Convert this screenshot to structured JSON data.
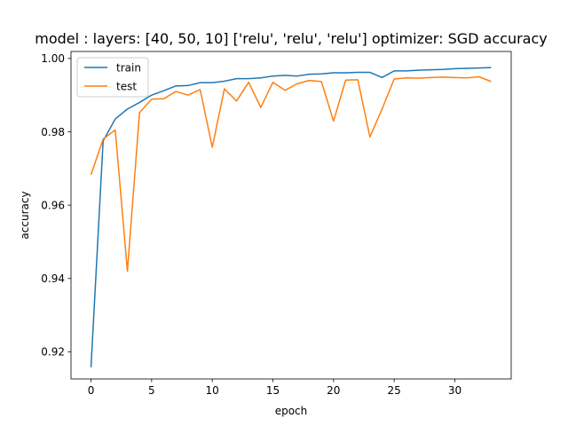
{
  "chart_data": {
    "type": "line",
    "title": "model : layers: [40, 50, 10] ['relu', 'relu', 'relu'] optimizer: SGD accuracy",
    "xlabel": "epoch",
    "ylabel": "accuracy",
    "xlim": [
      -1.65,
      34.65
    ],
    "ylim": [
      0.9126,
      1.0019
    ],
    "xticks": [
      0,
      5,
      10,
      15,
      20,
      25,
      30
    ],
    "yticks": [
      0.92,
      0.94,
      0.96,
      0.98,
      1.0
    ],
    "ytick_labels": [
      "0.92",
      "0.94",
      "0.96",
      "0.98",
      "1.00"
    ],
    "grid": false,
    "legend_position": "upper left",
    "x": [
      0,
      1,
      2,
      3,
      4,
      5,
      6,
      7,
      8,
      9,
      10,
      11,
      12,
      13,
      14,
      15,
      16,
      17,
      18,
      19,
      20,
      21,
      22,
      23,
      24,
      25,
      26,
      27,
      28,
      29,
      30,
      31,
      32,
      33
    ],
    "series": [
      {
        "name": "train",
        "color": "#1f77b4",
        "values": [
          0.9158,
          0.9775,
          0.9835,
          0.9862,
          0.988,
          0.99,
          0.9912,
          0.9925,
          0.9926,
          0.9934,
          0.9934,
          0.9938,
          0.9945,
          0.9945,
          0.9947,
          0.9952,
          0.9954,
          0.9952,
          0.9957,
          0.9958,
          0.9961,
          0.9961,
          0.9962,
          0.9962,
          0.9948,
          0.9966,
          0.9966,
          0.9968,
          0.9969,
          0.997,
          0.9972,
          0.9973,
          0.9974,
          0.9975
        ]
      },
      {
        "name": "test",
        "color": "#ff7f0e",
        "values": [
          0.9683,
          0.978,
          0.9805,
          0.942,
          0.9852,
          0.9889,
          0.989,
          0.991,
          0.99,
          0.9915,
          0.9758,
          0.9917,
          0.9884,
          0.9935,
          0.9866,
          0.9935,
          0.9913,
          0.9931,
          0.994,
          0.9937,
          0.9829,
          0.9941,
          0.9942,
          0.9786,
          0.9862,
          0.9944,
          0.9947,
          0.9946,
          0.9948,
          0.9949,
          0.9948,
          0.9947,
          0.995,
          0.9937
        ]
      }
    ]
  }
}
